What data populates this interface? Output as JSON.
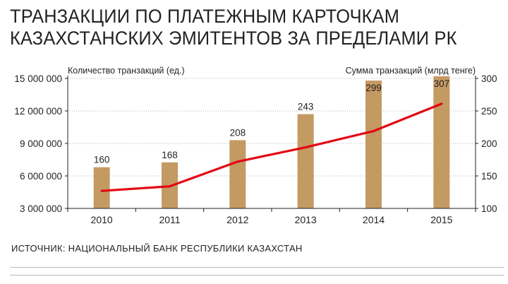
{
  "header": {
    "title_line1": "ТРАНЗАКЦИИ ПО ПЛАТЕЖНЫМ КАРТОЧКАМ",
    "title_line2": "КАЗАХСТАНСКИХ ЭМИТЕНТОВ ЗА ПРЕДЕЛАМИ РК"
  },
  "footer": {
    "source": "ИСТОЧНИК: НАЦИОНАЛЬНЫЙ БАНК РЕСПУБЛИКИ КАЗАХСТАН"
  },
  "chart_data": {
    "type": "bar",
    "categories": [
      "2010",
      "2011",
      "2012",
      "2013",
      "2014",
      "2015"
    ],
    "y_left": {
      "label": "Количество транзакций (ед.)",
      "ticks": [
        3000000,
        6000000,
        9000000,
        12000000,
        15000000
      ],
      "tick_labels": [
        "3 000 000",
        "6 000 000",
        "9 000 000",
        "12 000 000",
        "15 000 000"
      ],
      "range": [
        3000000,
        15000000
      ]
    },
    "y_right": {
      "label": "Сумма транзакций (млрд тенге)",
      "ticks": [
        100,
        150,
        200,
        250,
        300
      ],
      "tick_labels": [
        "100",
        "150",
        "200",
        "250",
        "300"
      ],
      "range": [
        100,
        300
      ]
    },
    "series": [
      {
        "type": "bar",
        "axis": "left",
        "values": [
          6800000,
          7250000,
          9300000,
          11700000,
          14800000,
          15200000
        ],
        "labels": [
          "160",
          "168",
          "208",
          "243",
          "299",
          "307"
        ],
        "color": "#c49a63"
      },
      {
        "type": "line",
        "axis": "right",
        "values": [
          127,
          134,
          172,
          194,
          219,
          261
        ],
        "color": "#e30613"
      }
    ],
    "colors": {
      "axis": "#231f20",
      "grid": "#9d9d9d"
    }
  }
}
